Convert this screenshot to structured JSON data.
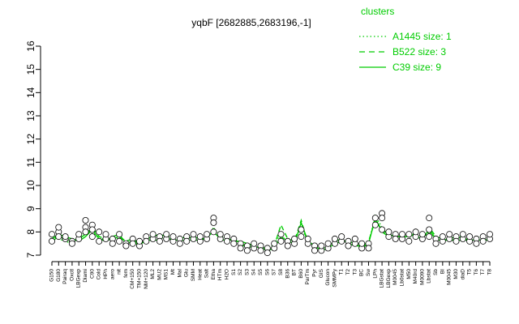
{
  "chart_data": {
    "type": "line",
    "title": "yqbF [2682885,2683196,-1]",
    "xlabel": "",
    "ylabel": "",
    "ylim": [
      7,
      16
    ],
    "yticks": [
      7,
      8,
      9,
      10,
      11,
      12,
      13,
      14,
      15,
      16
    ],
    "grid": false,
    "legend": {
      "title": "clusters",
      "placement": "top-right",
      "color": "#00cc00",
      "entries": [
        {
          "label": "A1445 size: 1",
          "style": "dotted"
        },
        {
          "label": "B522 size: 3",
          "style": "dashed"
        },
        {
          "label": "C39 size: 9",
          "style": "solid"
        }
      ]
    },
    "x_tick_labels": [
      "G150",
      "G180",
      "Pairaq",
      "Oxctl",
      "LBGexp",
      "Diami",
      "C90",
      "Cold",
      "HPh",
      "aero",
      "nit",
      "fem",
      "CM+150",
      "TM+150",
      "NM+120",
      "ML2",
      "MU2",
      "MS1",
      "Mt",
      "Mal",
      "Glu",
      "SMM",
      "Heat",
      "Salt",
      "Etha",
      "HTm",
      "H2O",
      "S1",
      "S2",
      "S3",
      "S4",
      "S5",
      "S6",
      "S7",
      "S8",
      "B36",
      "BT",
      "B60",
      "ParTm",
      "Pyr",
      "GIS",
      "Glucon",
      "SMMPy",
      "T1",
      "T2",
      "T3",
      "BC",
      "Sw",
      "LPh",
      "LBGstat",
      "LBGexp",
      "M0045",
      "Lb0stat",
      "M50",
      "M40rd",
      "M0090",
      "Lbstat",
      "Sb",
      "BI",
      "M0045",
      "M30",
      "diaD",
      "T5",
      "T6",
      "T7",
      "T8"
    ],
    "series": [
      {
        "style": "solid",
        "color": "#00cc00",
        "values": [
          7.7,
          7.9,
          7.8,
          7.7,
          7.6,
          7.8,
          8.1,
          7.7,
          7.6,
          7.8,
          7.9,
          7.5,
          7.6,
          7.4,
          7.7,
          7.8,
          7.9,
          7.8,
          7.6,
          7.7,
          7.8,
          7.7,
          7.6,
          7.8,
          8.0,
          7.7,
          7.6,
          7.7,
          7.5,
          7.4,
          7.3,
          7.4,
          7.2,
          7.3,
          7.8,
          7.6,
          7.5,
          8.4,
          7.6,
          7.4,
          7.2,
          7.3,
          7.5,
          7.6,
          7.6,
          7.5,
          7.3,
          7.5,
          8.6,
          8.0,
          7.8,
          7.9,
          7.7,
          7.9,
          7.8,
          7.7,
          8.1,
          7.7,
          7.6,
          7.7,
          7.8,
          7.7,
          7.6,
          7.7,
          7.6,
          7.7
        ]
      },
      {
        "style": "dashed",
        "color": "#00cc00",
        "values": [
          7.6,
          7.8,
          7.7,
          7.6,
          7.7,
          7.9,
          8.2,
          7.8,
          7.7,
          7.7,
          7.8,
          7.6,
          7.7,
          7.5,
          7.6,
          7.7,
          7.8,
          7.9,
          7.7,
          7.6,
          7.7,
          7.8,
          7.7,
          7.7,
          8.1,
          7.8,
          7.7,
          7.6,
          7.6,
          7.5,
          7.4,
          7.3,
          7.3,
          7.4,
          8.3,
          7.7,
          7.6,
          8.5,
          7.5,
          7.3,
          7.3,
          7.4,
          7.6,
          7.7,
          7.5,
          7.4,
          7.4,
          7.6,
          8.5,
          8.1,
          7.9,
          7.8,
          7.8,
          7.8,
          7.7,
          7.8,
          8.2,
          7.8,
          7.7,
          7.6,
          7.7,
          7.6,
          7.7,
          7.8,
          7.7,
          7.6
        ]
      },
      {
        "style": "dotted",
        "color": "#00cc00",
        "values": [
          7.8,
          7.7,
          7.6,
          7.5,
          7.8,
          8.0,
          8.0,
          7.7,
          7.7,
          7.6,
          7.8,
          7.5,
          7.6,
          7.5,
          7.7,
          7.6,
          7.7,
          7.8,
          7.8,
          7.7,
          7.6,
          7.7,
          7.8,
          7.6,
          8.2,
          7.7,
          7.8,
          7.5,
          7.5,
          7.3,
          7.4,
          7.3,
          7.2,
          7.5,
          7.9,
          7.5,
          7.7,
          8.2,
          7.6,
          7.4,
          7.2,
          7.4,
          7.6,
          7.5,
          7.7,
          7.6,
          7.4,
          7.5,
          8.7,
          8.2,
          7.7,
          7.8,
          7.8,
          7.9,
          7.9,
          7.7,
          8.0,
          7.7,
          7.8,
          7.6,
          7.8,
          7.8,
          7.6,
          7.7,
          7.8,
          7.7
        ]
      }
    ],
    "points": [
      {
        "x": 0,
        "y": 7.6
      },
      {
        "x": 0,
        "y": 7.9
      },
      {
        "x": 1,
        "y": 8.0
      },
      {
        "x": 1,
        "y": 8.2
      },
      {
        "x": 1,
        "y": 7.8
      },
      {
        "x": 2,
        "y": 7.7
      },
      {
        "x": 2,
        "y": 7.8
      },
      {
        "x": 3,
        "y": 7.6
      },
      {
        "x": 3,
        "y": 7.5
      },
      {
        "x": 4,
        "y": 7.7
      },
      {
        "x": 4,
        "y": 7.9
      },
      {
        "x": 5,
        "y": 8.5
      },
      {
        "x": 5,
        "y": 8.2
      },
      {
        "x": 5,
        "y": 8.0
      },
      {
        "x": 6,
        "y": 7.8
      },
      {
        "x": 6,
        "y": 8.3
      },
      {
        "x": 6,
        "y": 8.1
      },
      {
        "x": 7,
        "y": 7.6
      },
      {
        "x": 7,
        "y": 8.0
      },
      {
        "x": 8,
        "y": 7.7
      },
      {
        "x": 8,
        "y": 7.9
      },
      {
        "x": 9,
        "y": 7.7
      },
      {
        "x": 9,
        "y": 7.5
      },
      {
        "x": 10,
        "y": 7.6
      },
      {
        "x": 10,
        "y": 7.9
      },
      {
        "x": 11,
        "y": 7.5
      },
      {
        "x": 11,
        "y": 7.4
      },
      {
        "x": 12,
        "y": 7.7
      },
      {
        "x": 12,
        "y": 7.5
      },
      {
        "x": 13,
        "y": 7.4
      },
      {
        "x": 13,
        "y": 7.6
      },
      {
        "x": 14,
        "y": 7.8
      },
      {
        "x": 14,
        "y": 7.6
      },
      {
        "x": 15,
        "y": 7.7
      },
      {
        "x": 15,
        "y": 7.9
      },
      {
        "x": 16,
        "y": 7.8
      },
      {
        "x": 16,
        "y": 7.6
      },
      {
        "x": 17,
        "y": 7.7
      },
      {
        "x": 17,
        "y": 7.9
      },
      {
        "x": 18,
        "y": 7.6
      },
      {
        "x": 18,
        "y": 7.8
      },
      {
        "x": 19,
        "y": 7.7
      },
      {
        "x": 19,
        "y": 7.5
      },
      {
        "x": 20,
        "y": 7.8
      },
      {
        "x": 20,
        "y": 7.6
      },
      {
        "x": 21,
        "y": 7.7
      },
      {
        "x": 21,
        "y": 7.9
      },
      {
        "x": 22,
        "y": 7.6
      },
      {
        "x": 22,
        "y": 7.8
      },
      {
        "x": 23,
        "y": 7.7
      },
      {
        "x": 23,
        "y": 7.9
      },
      {
        "x": 24,
        "y": 8.6
      },
      {
        "x": 24,
        "y": 8.4
      },
      {
        "x": 24,
        "y": 8.0
      },
      {
        "x": 25,
        "y": 7.7
      },
      {
        "x": 25,
        "y": 7.9
      },
      {
        "x": 26,
        "y": 7.8
      },
      {
        "x": 26,
        "y": 7.6
      },
      {
        "x": 27,
        "y": 7.7
      },
      {
        "x": 27,
        "y": 7.5
      },
      {
        "x": 28,
        "y": 7.5
      },
      {
        "x": 28,
        "y": 7.3
      },
      {
        "x": 29,
        "y": 7.4
      },
      {
        "x": 29,
        "y": 7.2
      },
      {
        "x": 30,
        "y": 7.3
      },
      {
        "x": 30,
        "y": 7.5
      },
      {
        "x": 31,
        "y": 7.4
      },
      {
        "x": 31,
        "y": 7.2
      },
      {
        "x": 32,
        "y": 7.3
      },
      {
        "x": 32,
        "y": 7.1
      },
      {
        "x": 33,
        "y": 7.3
      },
      {
        "x": 33,
        "y": 7.5
      },
      {
        "x": 34,
        "y": 7.9
      },
      {
        "x": 34,
        "y": 7.6
      },
      {
        "x": 35,
        "y": 7.6
      },
      {
        "x": 35,
        "y": 7.4
      },
      {
        "x": 36,
        "y": 7.5
      },
      {
        "x": 36,
        "y": 7.7
      },
      {
        "x": 37,
        "y": 8.1
      },
      {
        "x": 37,
        "y": 7.8
      },
      {
        "x": 38,
        "y": 7.5
      },
      {
        "x": 38,
        "y": 7.7
      },
      {
        "x": 39,
        "y": 7.4
      },
      {
        "x": 39,
        "y": 7.2
      },
      {
        "x": 40,
        "y": 7.2
      },
      {
        "x": 40,
        "y": 7.4
      },
      {
        "x": 41,
        "y": 7.3
      },
      {
        "x": 41,
        "y": 7.5
      },
      {
        "x": 42,
        "y": 7.5
      },
      {
        "x": 42,
        "y": 7.7
      },
      {
        "x": 43,
        "y": 7.6
      },
      {
        "x": 43,
        "y": 7.8
      },
      {
        "x": 44,
        "y": 7.6
      },
      {
        "x": 44,
        "y": 7.4
      },
      {
        "x": 45,
        "y": 7.5
      },
      {
        "x": 45,
        "y": 7.7
      },
      {
        "x": 46,
        "y": 7.3
      },
      {
        "x": 46,
        "y": 7.5
      },
      {
        "x": 47,
        "y": 7.5
      },
      {
        "x": 47,
        "y": 7.3
      },
      {
        "x": 48,
        "y": 8.6
      },
      {
        "x": 48,
        "y": 8.3
      },
      {
        "x": 49,
        "y": 8.8
      },
      {
        "x": 49,
        "y": 8.6
      },
      {
        "x": 49,
        "y": 8.1
      },
      {
        "x": 50,
        "y": 7.8
      },
      {
        "x": 50,
        "y": 8.0
      },
      {
        "x": 51,
        "y": 7.9
      },
      {
        "x": 51,
        "y": 7.7
      },
      {
        "x": 52,
        "y": 7.7
      },
      {
        "x": 52,
        "y": 7.9
      },
      {
        "x": 53,
        "y": 7.9
      },
      {
        "x": 53,
        "y": 7.6
      },
      {
        "x": 54,
        "y": 7.8
      },
      {
        "x": 54,
        "y": 8.0
      },
      {
        "x": 55,
        "y": 7.7
      },
      {
        "x": 55,
        "y": 7.9
      },
      {
        "x": 56,
        "y": 8.6
      },
      {
        "x": 56,
        "y": 8.1
      },
      {
        "x": 56,
        "y": 7.8
      },
      {
        "x": 57,
        "y": 7.7
      },
      {
        "x": 57,
        "y": 7.5
      },
      {
        "x": 58,
        "y": 7.6
      },
      {
        "x": 58,
        "y": 7.8
      },
      {
        "x": 59,
        "y": 7.7
      },
      {
        "x": 59,
        "y": 7.9
      },
      {
        "x": 60,
        "y": 7.8
      },
      {
        "x": 60,
        "y": 7.6
      },
      {
        "x": 61,
        "y": 7.7
      },
      {
        "x": 61,
        "y": 7.9
      },
      {
        "x": 62,
        "y": 7.6
      },
      {
        "x": 62,
        "y": 7.8
      },
      {
        "x": 63,
        "y": 7.7
      },
      {
        "x": 63,
        "y": 7.5
      },
      {
        "x": 64,
        "y": 7.8
      },
      {
        "x": 64,
        "y": 7.6
      },
      {
        "x": 65,
        "y": 7.7
      },
      {
        "x": 65,
        "y": 7.9
      }
    ]
  }
}
